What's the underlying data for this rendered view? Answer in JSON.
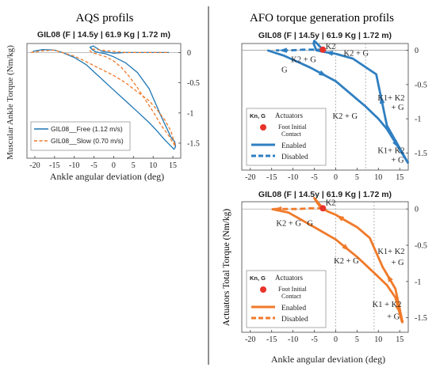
{
  "left_section_title": "AQS profils",
  "right_section_title": "AFO torque generation profils",
  "shared_ylabel": "Actuators Total Torque (Nm/kg)",
  "colors": {
    "blue": "#1f77b4",
    "blue_line": "#2f7fc1",
    "orange": "#f07a2a",
    "red": "#e8322a",
    "axis": "#222222"
  },
  "chart_data": [
    {
      "id": "aqs",
      "type": "line",
      "title": "GIL08 (F | 14.5y | 61.9 Kg | 1.72 m)",
      "xlabel": "Ankle angular deviation (deg)",
      "ylabel": "Muscular Ankle Torque (Nm/kg)",
      "xlim": [
        -22,
        17
      ],
      "ylim": [
        -1.75,
        0.15
      ],
      "xticks": [
        -20,
        -15,
        -10,
        -5,
        0,
        5,
        10,
        15
      ],
      "yticks": [
        0,
        -0.5,
        -1,
        -1.5
      ],
      "ytick_labels": [
        "0",
        "-0.5",
        "-1",
        "-1.5"
      ],
      "legend_position": "lower-left",
      "series": [
        {
          "name": "GIL08__Free (1.12 m/s)",
          "style": "solid",
          "color": "#1f77b4",
          "x": [
            -20.5,
            -18,
            -15,
            -13,
            -10,
            -7,
            -5,
            -3,
            0,
            3,
            6,
            9,
            11,
            13,
            14.5,
            15.3,
            15.7,
            15.5,
            14.5,
            12,
            9,
            6,
            3,
            0,
            -2,
            -4.5,
            -5.5,
            -6,
            -5.2,
            -3,
            0,
            3,
            6,
            10,
            14
          ],
          "y": [
            0.02,
            0.05,
            0.04,
            0.0,
            -0.08,
            -0.2,
            -0.32,
            -0.44,
            -0.62,
            -0.8,
            -0.98,
            -1.16,
            -1.3,
            -1.45,
            -1.55,
            -1.6,
            -1.56,
            -1.48,
            -1.4,
            -1.05,
            -0.6,
            -0.33,
            -0.17,
            -0.07,
            -0.02,
            0.01,
            0.05,
            0.09,
            0.11,
            0.02,
            -0.01,
            0.0,
            0.0,
            0.0,
            0.0
          ]
        },
        {
          "name": "GIL08__Slow (0.70 m/s)",
          "style": "dashed",
          "color": "#f07a2a",
          "x": [
            -21,
            -18,
            -15,
            -13,
            -10,
            -7,
            -4,
            0,
            3,
            6,
            9,
            11,
            13,
            14.5,
            15.2,
            15.6,
            15.3,
            14,
            12,
            10,
            8,
            6,
            4,
            2,
            0,
            -2,
            -4,
            -5.5,
            -6,
            -5.5,
            -3,
            0,
            3,
            6,
            10,
            14
          ],
          "y": [
            0.0,
            0.03,
            0.04,
            0.0,
            -0.06,
            -0.15,
            -0.25,
            -0.38,
            -0.5,
            -0.65,
            -0.8,
            -0.95,
            -1.12,
            -1.3,
            -1.45,
            -1.55,
            -1.52,
            -1.38,
            -1.2,
            -0.98,
            -0.78,
            -0.58,
            -0.4,
            -0.25,
            -0.14,
            -0.07,
            -0.03,
            0.0,
            0.03,
            0.06,
            0.04,
            0.02,
            0.0,
            0.0,
            0.0,
            0.0
          ]
        }
      ]
    },
    {
      "id": "afo_blue",
      "type": "line",
      "title": "GIL08 (F | 14.5y | 61.9 Kg | 1.72 m)",
      "xlim": [
        -22,
        17
      ],
      "ylim": [
        -1.75,
        0.1
      ],
      "xticks": [
        -20,
        -15,
        -10,
        -5,
        0,
        5,
        10,
        15
      ],
      "yticks": [
        0,
        -0.5,
        -1,
        -1.5
      ],
      "ytick_labels": [
        "0",
        "-0.5",
        "-1",
        "-1.5"
      ],
      "vlines": [
        0,
        7
      ],
      "foot_initial_contact": {
        "x": -3,
        "y": 0.01
      },
      "path": {
        "x": [
          -3,
          -4.5,
          -7.5,
          -10.5,
          -14,
          -16,
          -12,
          -6,
          0,
          7,
          10,
          12,
          16.5,
          17,
          12,
          9.5,
          4,
          0,
          -3,
          -4.5,
          -5.2,
          -5,
          -3
        ],
        "y": [
          0.01,
          0.01,
          0.01,
          0.0,
          0.0,
          0.0,
          -0.08,
          -0.25,
          -0.45,
          -0.82,
          -1.0,
          -1.15,
          -1.6,
          -1.65,
          -1.1,
          -0.35,
          -0.12,
          -0.05,
          -0.02,
          0.0,
          0.1,
          0.14,
          0.01
        ]
      },
      "enabled_segments": [
        [
          5,
          6,
          7,
          8,
          9,
          10,
          11,
          12,
          13
        ],
        [
          13,
          14,
          15,
          16,
          17,
          18,
          19,
          20,
          21,
          22
        ]
      ],
      "disabled_segments": [
        [
          0,
          1,
          2,
          3,
          4
        ]
      ],
      "annotations": [
        {
          "text": "K2",
          "x": -1.2,
          "y": 0.02
        },
        {
          "text": "K2 + G",
          "x": -7.5,
          "y": -0.17
        },
        {
          "text": "K2 + G",
          "x": 4.8,
          "y": -0.08
        },
        {
          "text": "G",
          "x": -12,
          "y": -0.32
        },
        {
          "text": "K1+ K2",
          "x": 13,
          "y": -0.73
        },
        {
          "text": "+ G",
          "x": 14.5,
          "y": -0.87
        },
        {
          "text": "K2 +  G",
          "x": 2.2,
          "y": -1.0
        },
        {
          "text": "K1+ K2",
          "x": 13,
          "y": -1.5
        },
        {
          "text": "+ G",
          "x": 14.5,
          "y": -1.64
        }
      ],
      "legend": {
        "position": "lower-left",
        "header_left": "Kn, G",
        "header_right": "Actuators",
        "items": [
          {
            "label": "Foot Initial",
            "label2": "Contact",
            "kind": "dot"
          },
          {
            "label": "Enabled",
            "kind": "solid"
          },
          {
            "label": "Disabled",
            "kind": "dashed"
          }
        ]
      },
      "color": "#2f7fc1"
    },
    {
      "id": "afo_orange",
      "type": "line",
      "title": "GIL08 (F | 14.5y | 61.9 Kg | 1.72 m)",
      "xlabel": "Ankle angular deviation (deg)",
      "xlim": [
        -22,
        17
      ],
      "ylim": [
        -1.7,
        0.1
      ],
      "xticks": [
        -20,
        -15,
        -10,
        -5,
        0,
        5,
        10,
        15
      ],
      "yticks": [
        0,
        -0.5,
        -1,
        -1.5
      ],
      "ytick_labels": [
        "0",
        "-0.5",
        "-1",
        "-1.5"
      ],
      "vlines": [
        0,
        9
      ],
      "foot_initial_contact": {
        "x": -3,
        "y": 0.01
      },
      "path": {
        "x": [
          -3,
          -6,
          -9,
          -12,
          -15,
          -11,
          -5,
          0,
          5,
          9,
          12,
          14,
          15.5,
          15.7,
          14,
          11,
          8,
          5,
          2,
          0,
          -2,
          -3.5,
          -4.5,
          -5,
          -3
        ],
        "y": [
          0.01,
          0.01,
          0.0,
          0.0,
          0.0,
          -0.05,
          -0.25,
          -0.42,
          -0.66,
          -0.88,
          -1.05,
          -1.22,
          -1.55,
          -1.57,
          -1.1,
          -0.8,
          -0.4,
          -0.25,
          -0.15,
          -0.08,
          -0.03,
          0.02,
          0.1,
          0.15,
          0.01
        ]
      },
      "enabled_segments": [
        [
          4,
          5,
          6,
          7,
          8,
          9,
          10,
          11,
          12,
          13
        ],
        [
          13,
          14,
          15,
          16,
          17,
          18,
          19,
          20,
          21,
          22,
          23,
          24
        ]
      ],
      "disabled_segments": [
        [
          0,
          1,
          2,
          3,
          4
        ]
      ],
      "annotations": [
        {
          "text": "K2",
          "x": -1.2,
          "y": 0.05
        },
        {
          "text": "K2 + G",
          "x": -11,
          "y": -0.23
        },
        {
          "text": "G",
          "x": -6,
          "y": -0.23
        },
        {
          "text": "K2 + G",
          "x": 2.5,
          "y": -0.75
        },
        {
          "text": "K1+ K2",
          "x": 13,
          "y": -0.62
        },
        {
          "text": "+ G",
          "x": 14.5,
          "y": -0.77
        },
        {
          "text": "K1 + K2",
          "x": 12,
          "y": -1.35
        },
        {
          "text": "+ G",
          "x": 13.5,
          "y": -1.52
        }
      ],
      "legend": {
        "position": "lower-left",
        "header_left": "Kn, G",
        "header_right": "Actuators",
        "items": [
          {
            "label": "Foot Initial",
            "label2": "Contact",
            "kind": "dot"
          },
          {
            "label": "Enabled",
            "kind": "solid"
          },
          {
            "label": "Disabled",
            "kind": "dashed"
          }
        ]
      },
      "color": "#f07a2a"
    }
  ]
}
